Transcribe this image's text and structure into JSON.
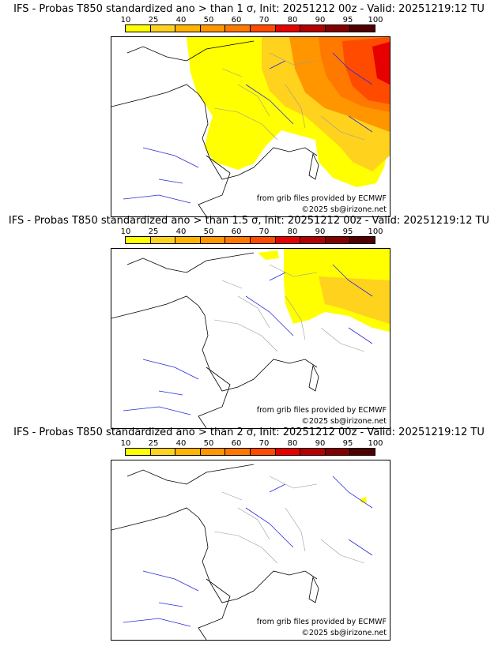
{
  "colorbar": {
    "labels": [
      "10",
      "25",
      "40",
      "50",
      "60",
      "70",
      "80",
      "90",
      "95",
      "100"
    ],
    "colors": [
      "#ffff00",
      "#ffd21e",
      "#ffb400",
      "#ff9600",
      "#ff7800",
      "#ff4b00",
      "#e60000",
      "#b40000",
      "#820000",
      "#500000"
    ]
  },
  "panels": [
    {
      "title": "IFS - Probas T850  standardized ano > than 1 σ, Init: 20251212 00z - Valid: 20251219:12 TU",
      "source": "from grib files provided by ECMWF",
      "copyright": "©2025 sb@irizone.net"
    },
    {
      "title": "IFS - Probas T850  standardized ano > than 1.5 σ, Init: 20251212 00z - Valid: 20251219:12 TU",
      "source": "from grib files provided by ECMWF",
      "copyright": "©2025 sb@irizone.net"
    },
    {
      "title": "IFS - Probas T850  standardized ano > than 2 σ, Init: 20251212 00z - Valid: 20251219:12 TU",
      "source": "from grib files provided by ECMWF",
      "copyright": "©2025 sb@irizone.net"
    }
  ]
}
